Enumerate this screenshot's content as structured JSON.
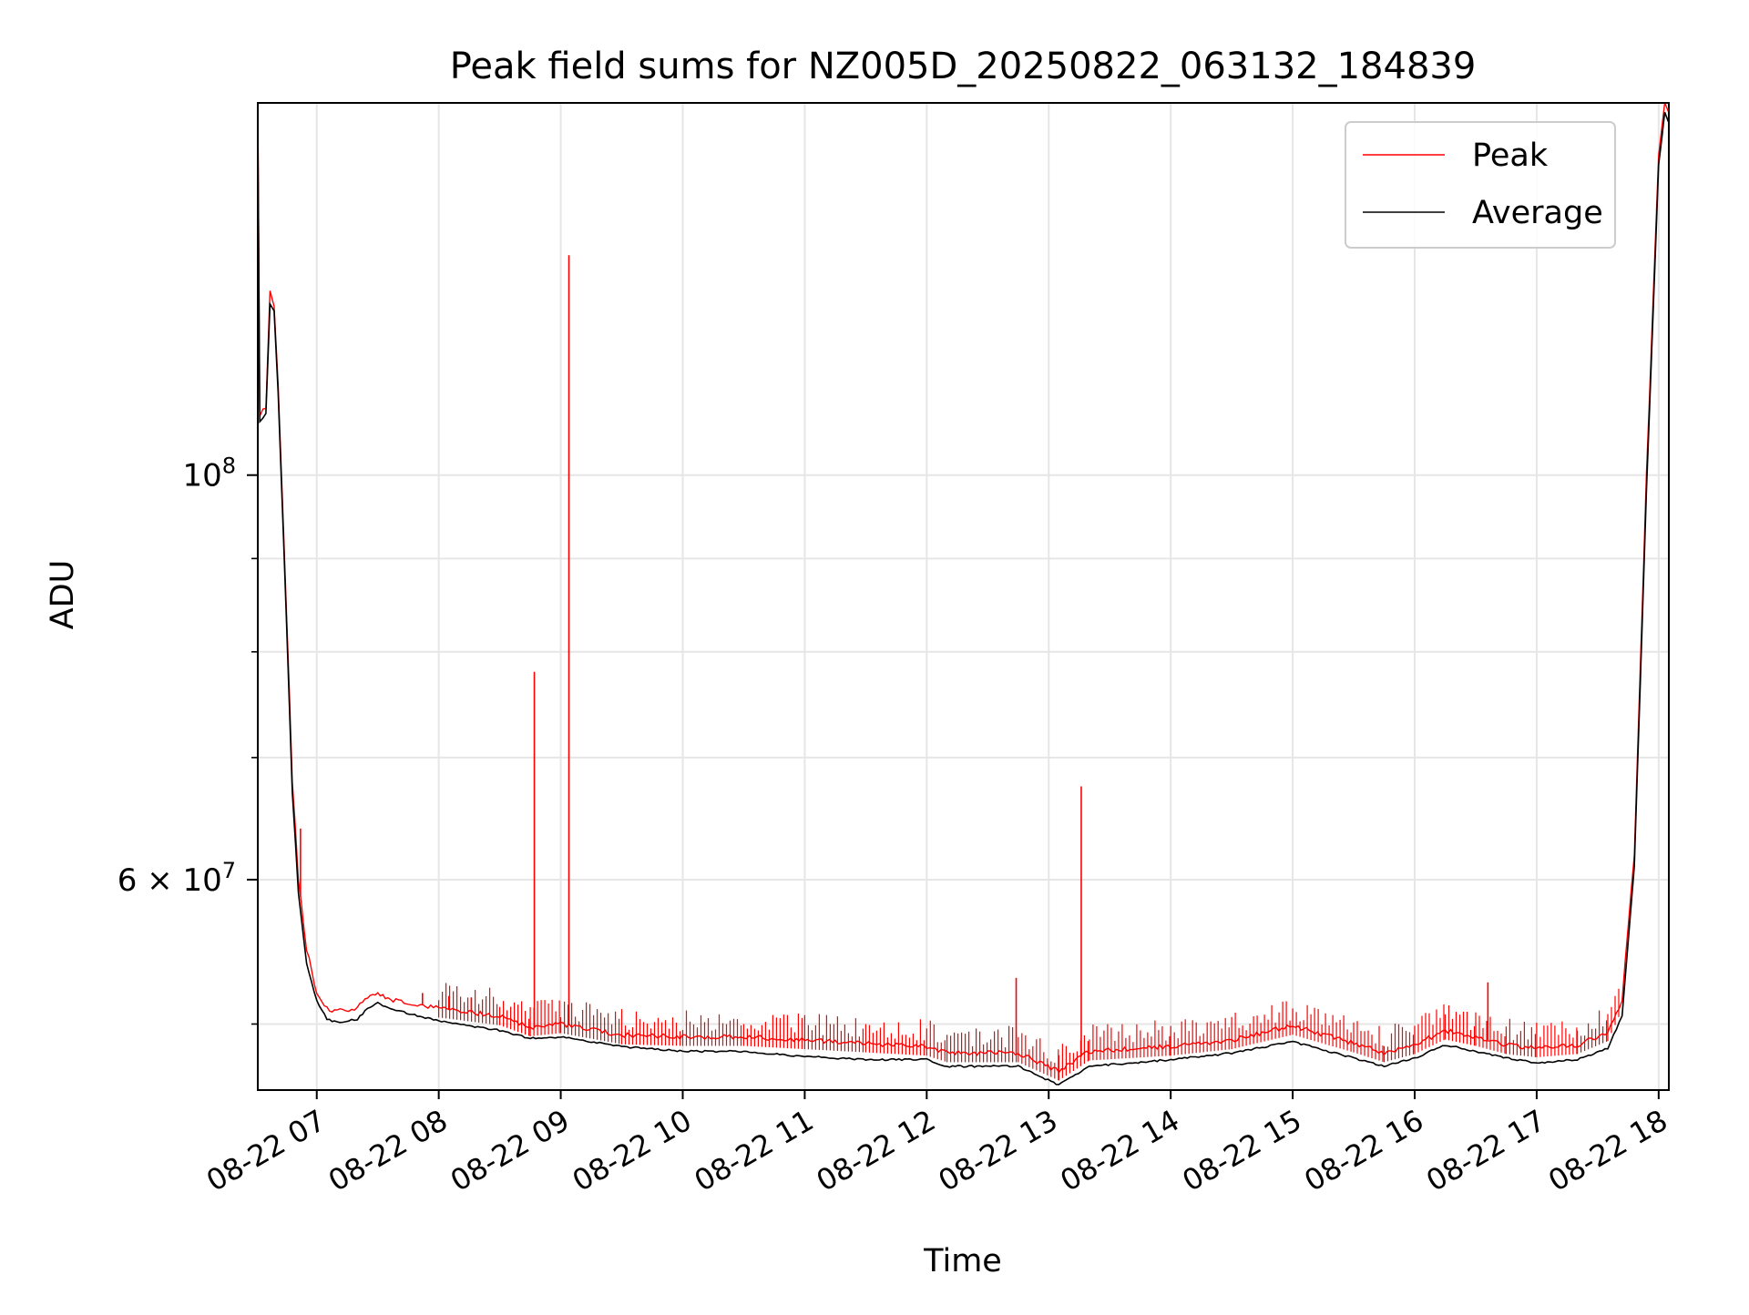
{
  "chart_data": {
    "type": "line",
    "title": "Peak field sums for NZ005D_20250822_063132_184839",
    "xlabel": "Time",
    "ylabel": "ADU",
    "y_scale": "log",
    "ylim": [
      46000000,
      160000000
    ],
    "xlim": [
      "2025-08-22 06:31",
      "2025-08-22 18:05"
    ],
    "grid": true,
    "legend_position": "upper right",
    "x_ticks": [
      {
        "t": "2025-08-22 07:00",
        "label": "08-22 07"
      },
      {
        "t": "2025-08-22 08:00",
        "label": "08-22 08"
      },
      {
        "t": "2025-08-22 09:00",
        "label": "08-22 09"
      },
      {
        "t": "2025-08-22 10:00",
        "label": "08-22 10"
      },
      {
        "t": "2025-08-22 11:00",
        "label": "08-22 11"
      },
      {
        "t": "2025-08-22 12:00",
        "label": "08-22 12"
      },
      {
        "t": "2025-08-22 13:00",
        "label": "08-22 13"
      },
      {
        "t": "2025-08-22 14:00",
        "label": "08-22 14"
      },
      {
        "t": "2025-08-22 15:00",
        "label": "08-22 15"
      },
      {
        "t": "2025-08-22 16:00",
        "label": "08-22 16"
      },
      {
        "t": "2025-08-22 17:00",
        "label": "08-22 17"
      },
      {
        "t": "2025-08-22 18:00",
        "label": "08-22 18"
      }
    ],
    "y_major_ticks": [
      {
        "value": 100000000,
        "base": "10",
        "exp": "8",
        "mantissa": ""
      },
      {
        "value": 60000000,
        "base": "10",
        "exp": "7",
        "mantissa": "6"
      }
    ],
    "y_minor_ticks": [
      50000000,
      70000000,
      80000000,
      90000000,
      200000000
    ],
    "series": [
      {
        "name": "Peak",
        "color": "#ff0000",
        "points": [
          [
            "2025-08-22 06:31",
            160000000
          ],
          [
            "2025-08-22 06:32",
            108000000
          ],
          [
            "2025-08-22 06:35",
            109000000
          ],
          [
            "2025-08-22 06:37",
            126000000
          ],
          [
            "2025-08-22 06:39",
            124000000
          ],
          [
            "2025-08-22 06:41",
            112000000
          ],
          [
            "2025-08-22 06:45",
            85000000
          ],
          [
            "2025-08-22 06:48",
            68000000
          ],
          [
            "2025-08-22 06:51",
            60000000
          ],
          [
            "2025-08-22 06:55",
            55000000
          ],
          [
            "2025-08-22 07:00",
            52000000
          ],
          [
            "2025-08-22 07:05",
            51000000
          ],
          [
            "2025-08-22 07:10",
            50800000
          ],
          [
            "2025-08-22 07:20",
            51000000
          ],
          [
            "2025-08-22 07:25",
            51800000
          ],
          [
            "2025-08-22 07:30",
            52000000
          ],
          [
            "2025-08-22 07:35",
            51600000
          ],
          [
            "2025-08-22 08:00",
            51000000
          ],
          [
            "2025-08-22 08:30",
            50500000
          ],
          [
            "2025-08-22 08:45",
            49800000
          ],
          [
            "2025-08-22 09:00",
            50000000
          ],
          [
            "2025-08-22 09:30",
            49300000
          ],
          [
            "2025-08-22 10:00",
            49200000
          ],
          [
            "2025-08-22 10:30",
            49200000
          ],
          [
            "2025-08-22 11:00",
            49000000
          ],
          [
            "2025-08-22 11:30",
            48800000
          ],
          [
            "2025-08-22 12:00",
            48600000
          ],
          [
            "2025-08-22 12:10",
            48200000
          ],
          [
            "2025-08-22 12:45",
            48200000
          ],
          [
            "2025-08-22 13:05",
            47100000
          ],
          [
            "2025-08-22 13:20",
            48300000
          ],
          [
            "2025-08-22 14:00",
            48600000
          ],
          [
            "2025-08-22 14:30",
            49000000
          ],
          [
            "2025-08-22 15:00",
            49900000
          ],
          [
            "2025-08-22 15:30",
            48800000
          ],
          [
            "2025-08-22 15:45",
            48200000
          ],
          [
            "2025-08-22 16:00",
            48700000
          ],
          [
            "2025-08-22 16:15",
            49600000
          ],
          [
            "2025-08-22 16:30",
            49200000
          ],
          [
            "2025-08-22 16:45",
            48700000
          ],
          [
            "2025-08-22 17:00",
            48500000
          ],
          [
            "2025-08-22 17:20",
            48700000
          ],
          [
            "2025-08-22 17:35",
            49500000
          ],
          [
            "2025-08-22 17:42",
            51500000
          ],
          [
            "2025-08-22 17:48",
            62000000
          ],
          [
            "2025-08-22 17:54",
            100000000
          ],
          [
            "2025-08-22 18:00",
            150000000
          ],
          [
            "2025-08-22 18:03",
            160000000
          ],
          [
            "2025-08-22 18:05",
            158000000
          ]
        ],
        "spikes": [
          [
            "2025-08-22 06:52",
            64000000
          ],
          [
            "2025-08-22 07:52",
            52000000
          ],
          [
            "2025-08-22 08:05",
            51800000
          ],
          [
            "2025-08-22 08:16",
            51700000
          ],
          [
            "2025-08-22 08:47",
            78000000
          ],
          [
            "2025-08-22 09:04",
            132000000
          ],
          [
            "2025-08-22 12:44",
            53000000
          ],
          [
            "2025-08-22 13:16",
            67500000
          ],
          [
            "2025-08-22 16:36",
            52700000
          ]
        ]
      },
      {
        "name": "Average",
        "color": "#000000",
        "points": [
          [
            "2025-08-22 06:31",
            157000000
          ],
          [
            "2025-08-22 06:32",
            107000000
          ],
          [
            "2025-08-22 06:35",
            108000000
          ],
          [
            "2025-08-22 06:37",
            124000000
          ],
          [
            "2025-08-22 06:39",
            123000000
          ],
          [
            "2025-08-22 06:41",
            111000000
          ],
          [
            "2025-08-22 06:45",
            84000000
          ],
          [
            "2025-08-22 06:48",
            67000000
          ],
          [
            "2025-08-22 06:51",
            59000000
          ],
          [
            "2025-08-22 06:55",
            54000000
          ],
          [
            "2025-08-22 07:00",
            51500000
          ],
          [
            "2025-08-22 07:05",
            50300000
          ],
          [
            "2025-08-22 07:10",
            50100000
          ],
          [
            "2025-08-22 07:20",
            50300000
          ],
          [
            "2025-08-22 07:25",
            51000000
          ],
          [
            "2025-08-22 07:30",
            51400000
          ],
          [
            "2025-08-22 07:35",
            51000000
          ],
          [
            "2025-08-22 08:00",
            50200000
          ],
          [
            "2025-08-22 08:30",
            49600000
          ],
          [
            "2025-08-22 08:45",
            49100000
          ],
          [
            "2025-08-22 09:00",
            49200000
          ],
          [
            "2025-08-22 09:30",
            48600000
          ],
          [
            "2025-08-22 10:00",
            48300000
          ],
          [
            "2025-08-22 10:30",
            48300000
          ],
          [
            "2025-08-22 11:00",
            48000000
          ],
          [
            "2025-08-22 11:30",
            47800000
          ],
          [
            "2025-08-22 12:00",
            47800000
          ],
          [
            "2025-08-22 12:10",
            47400000
          ],
          [
            "2025-08-22 12:45",
            47400000
          ],
          [
            "2025-08-22 13:05",
            46300000
          ],
          [
            "2025-08-22 13:20",
            47400000
          ],
          [
            "2025-08-22 14:00",
            47800000
          ],
          [
            "2025-08-22 14:30",
            48200000
          ],
          [
            "2025-08-22 15:00",
            48900000
          ],
          [
            "2025-08-22 15:30",
            47900000
          ],
          [
            "2025-08-22 15:45",
            47400000
          ],
          [
            "2025-08-22 16:00",
            47900000
          ],
          [
            "2025-08-22 16:15",
            48700000
          ],
          [
            "2025-08-22 16:30",
            48300000
          ],
          [
            "2025-08-22 16:45",
            47900000
          ],
          [
            "2025-08-22 17:00",
            47600000
          ],
          [
            "2025-08-22 17:20",
            47800000
          ],
          [
            "2025-08-22 17:35",
            48500000
          ],
          [
            "2025-08-22 17:42",
            50500000
          ],
          [
            "2025-08-22 17:48",
            61000000
          ],
          [
            "2025-08-22 17:54",
            98000000
          ],
          [
            "2025-08-22 18:00",
            148000000
          ],
          [
            "2025-08-22 18:03",
            158000000
          ],
          [
            "2025-08-22 18:05",
            156000000
          ]
        ]
      }
    ]
  }
}
